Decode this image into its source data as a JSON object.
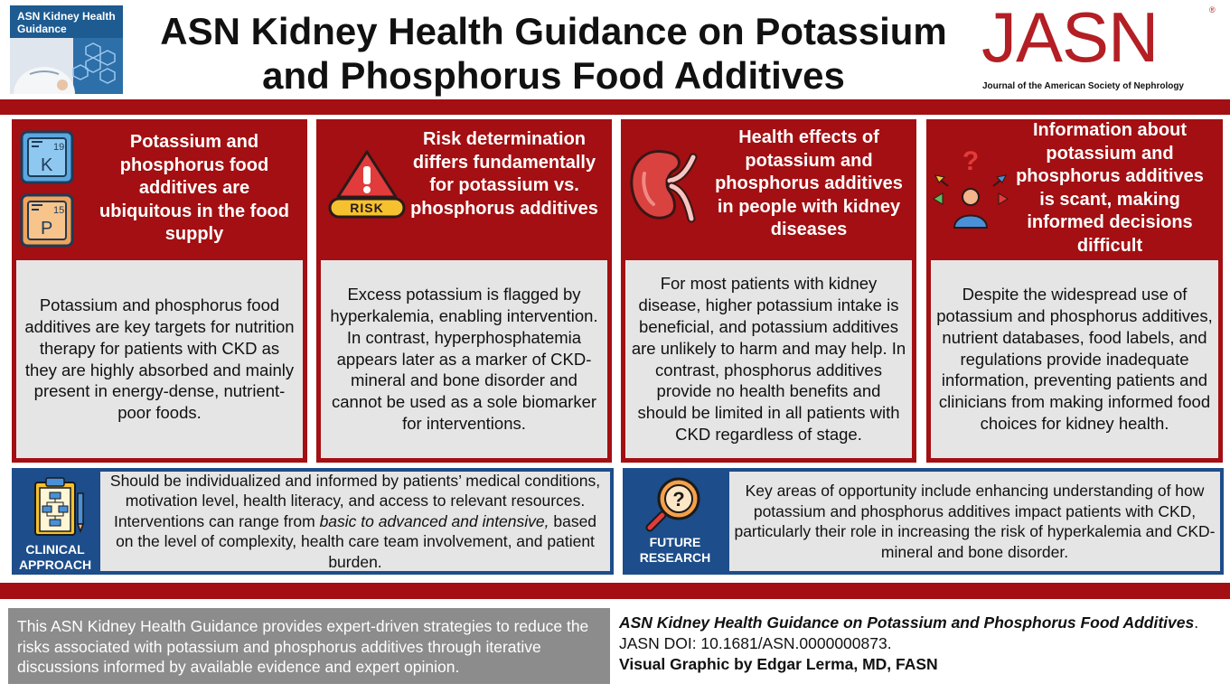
{
  "header": {
    "badge_title": "ASN Kidney Health Guidance",
    "title_line1": "ASN Kidney Health Guidance on Potassium",
    "title_line2": "and Phosphorus Food Additives",
    "journal_logo": "JASN",
    "journal_name": "Journal of the American Society of Nephrology"
  },
  "columns": [
    {
      "title": "Potassium and phosphorus food additives are ubiquitous in the food supply",
      "body": "Potassium and phosphorus food additives are key targets for nutrition therapy for patients with CKD as they are highly absorbed and mainly present in energy-dense, nutrient-poor foods.",
      "icon": "periodic-elements-icon",
      "element_k_symbol": "K",
      "element_k_number": "19",
      "element_p_symbol": "P",
      "element_p_number": "15"
    },
    {
      "title": "Risk determination differs fundamentally for potassium vs. phosphorus additives",
      "body": "Excess potassium is flagged by hyperkalemia, enabling intervention. In contrast, hyperphosphatemia appears later as a marker of CKD-mineral and bone disorder and cannot be used as a sole biomarker for interventions.",
      "icon": "risk-warning-icon",
      "risk_label": "RISK"
    },
    {
      "title": "Health effects of potassium and phosphorus additives in people with kidney diseases",
      "body": "For most patients with kidney disease, higher potassium intake is beneficial, and potassium additives are unlikely to harm and may help. In contrast, phosphorus additives provide no health benefits and should be limited in all patients with CKD regardless of stage.",
      "icon": "kidney-icon"
    },
    {
      "title": "Information about potassium and phosphorus additives is scant, making informed decisions difficult",
      "body": "Despite the widespread use of potassium and phosphorus additives, nutrient databases, food labels, and regulations provide inadequate information, preventing patients and clinicians from making informed food choices for kidney health.",
      "icon": "confused-person-icon"
    }
  ],
  "clinical": {
    "label": "CLINICAL APPROACH",
    "text_before": "Should be individualized and informed by patients’ medical conditions, motivation level, health literacy, and access to relevant resources. Interventions can range from ",
    "text_italic": "basic to advanced and intensive,",
    "text_after": " based on the level of complexity, health care team involvement, and patient burden."
  },
  "research": {
    "label": "FUTURE RESEARCH",
    "text": "Key areas of opportunity include enhancing understanding of how potassium and phosphorus additives impact patients with CKD, particularly their role in increasing the risk of hyperkalemia and CKD-mineral and bone disorder."
  },
  "summary": "This ASN Kidney Health Guidance provides expert-driven strategies to reduce the risks associated with potassium and phosphorus additives through iterative discussions informed by available evidence and expert opinion.",
  "citation": {
    "title": "ASN Kidney Health Guidance on Potassium and Phosphorus Food Additives",
    "doi": ". JASN DOI: 10.1681/ASN.0000000873.",
    "credit": "Visual Graphic by Edgar Lerma, MD, FASN"
  },
  "colors": {
    "accent_red": "#a30f12",
    "accent_blue": "#1d4d8a",
    "panel_gray": "#e5e5e6",
    "summary_gray": "#8c8c8c",
    "logo_red": "#b31f24"
  }
}
